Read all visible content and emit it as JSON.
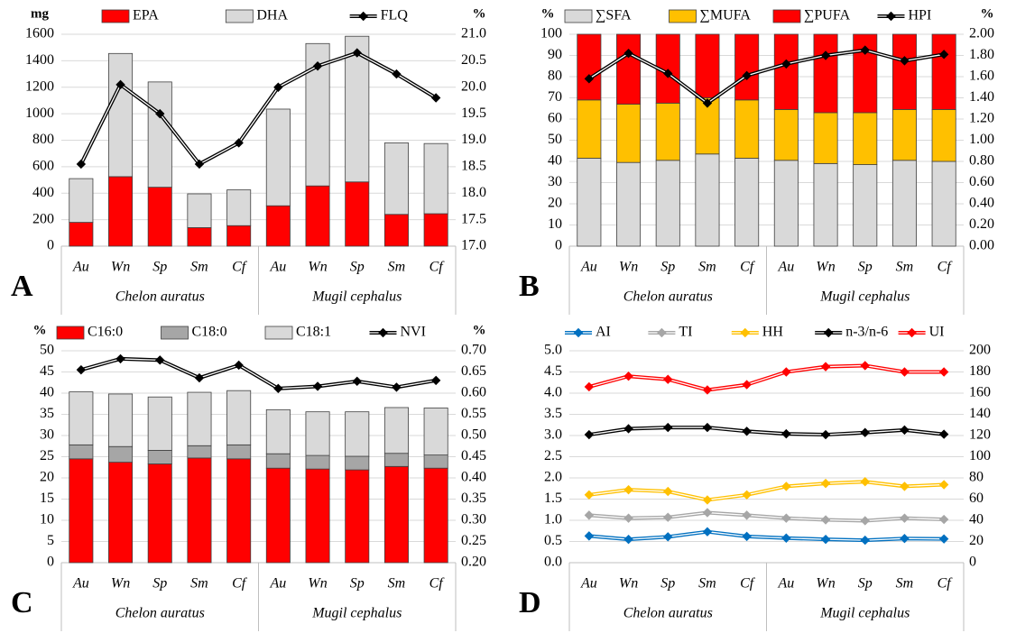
{
  "chart_data": [
    {
      "type": "bar",
      "panel_label": "A",
      "y_label": "mg",
      "y2_label": "%",
      "categories": [
        "Au",
        "Wn",
        "Sp",
        "Sm",
        "Cf",
        "Au",
        "Wn",
        "Sp",
        "Sm",
        "Cf"
      ],
      "groups": [
        "Chelon auratus",
        "Mugil cephalus"
      ],
      "series": [
        {
          "name": "EPA",
          "color": "#ff0000",
          "values": [
            180,
            525,
            445,
            140,
            155,
            305,
            455,
            485,
            240,
            245
          ]
        },
        {
          "name": "DHA",
          "color": "#d9d9d9",
          "values": [
            330,
            930,
            795,
            255,
            270,
            730,
            1075,
            1100,
            540,
            530
          ]
        },
        {
          "name": "FLQ",
          "color": "#000000",
          "type": "line",
          "axis": "y2",
          "values": [
            18.55,
            20.05,
            19.5,
            18.55,
            18.95,
            20.0,
            20.4,
            20.65,
            20.25,
            19.8
          ]
        }
      ],
      "ylim": [
        0,
        1600
      ],
      "yticks": [
        0,
        200,
        400,
        600,
        800,
        1000,
        1200,
        1400,
        1600
      ],
      "y2lim": [
        17,
        21
      ],
      "y2ticks": [
        {
          "value": 17,
          "label": "17.0"
        },
        {
          "value": 17.5,
          "label": "17.5"
        },
        {
          "value": 18,
          "label": "18.0"
        },
        {
          "value": 18.5,
          "label": "18.5"
        },
        {
          "value": 19,
          "label": "19.0"
        },
        {
          "value": 19.5,
          "label": "19.5"
        },
        {
          "value": 20,
          "label": "20.0"
        },
        {
          "value": 20.5,
          "label": "20.5"
        },
        {
          "value": 21,
          "label": "21.0"
        }
      ],
      "grid": true
    },
    {
      "type": "bar",
      "panel_label": "B",
      "y_label": "%",
      "y2_label": "%",
      "categories": [
        "Au",
        "Wn",
        "Sp",
        "Sm",
        "Cf",
        "Au",
        "Wn",
        "Sp",
        "Sm",
        "Cf"
      ],
      "groups": [
        "Chelon auratus",
        "Mugil cephalus"
      ],
      "series": [
        {
          "name": "∑SFA",
          "color": "#d9d9d9",
          "values": [
            41.5,
            39.5,
            40.5,
            43.5,
            41.5,
            40.5,
            39,
            38.5,
            40.5,
            40
          ]
        },
        {
          "name": "∑MUFA",
          "color": "#ffc000",
          "values": [
            27.5,
            27.5,
            27,
            26.5,
            27.5,
            24,
            24,
            24.5,
            24,
            24.5
          ]
        },
        {
          "name": "∑PUFA",
          "color": "#ff0000",
          "values": [
            31,
            33,
            32.5,
            30,
            31,
            35.5,
            37,
            37,
            35.5,
            35.5
          ]
        },
        {
          "name": "HPI",
          "color": "#000000",
          "type": "line",
          "axis": "y2",
          "values": [
            1.58,
            1.82,
            1.63,
            1.35,
            1.61,
            1.72,
            1.8,
            1.85,
            1.75,
            1.81
          ]
        }
      ],
      "ylim": [
        0,
        100
      ],
      "yticks": [
        0,
        10,
        20,
        30,
        40,
        50,
        60,
        70,
        80,
        90,
        100
      ],
      "y2lim": [
        0,
        2
      ],
      "y2ticks": [
        {
          "value": 0,
          "label": "0.00"
        },
        {
          "value": 0.2,
          "label": "0.20"
        },
        {
          "value": 0.4,
          "label": "0.40"
        },
        {
          "value": 0.6,
          "label": "0.60"
        },
        {
          "value": 0.8,
          "label": "0.80"
        },
        {
          "value": 1,
          "label": "1.00"
        },
        {
          "value": 1.2,
          "label": "1.20"
        },
        {
          "value": 1.4,
          "label": "1.40"
        },
        {
          "value": 1.6,
          "label": "1.60"
        },
        {
          "value": 1.8,
          "label": "1.80"
        },
        {
          "value": 2,
          "label": "2.00"
        }
      ],
      "grid": true
    },
    {
      "type": "bar",
      "panel_label": "C",
      "y_label": "%",
      "y2_label": "%",
      "categories": [
        "Au",
        "Wn",
        "Sp",
        "Sm",
        "Cf",
        "Au",
        "Wn",
        "Sp",
        "Sm",
        "Cf"
      ],
      "groups": [
        "Chelon auratus",
        "Mugil cephalus"
      ],
      "series": [
        {
          "name": "C16:0",
          "color": "#ff0000",
          "values": [
            24.5,
            23.7,
            23.3,
            24.7,
            24.5,
            22.3,
            22.1,
            21.9,
            22.7,
            22.3
          ]
        },
        {
          "name": "C18:0",
          "color": "#a6a6a6",
          "values": [
            3.3,
            3.7,
            3.2,
            2.9,
            3.3,
            3.4,
            3.2,
            3.2,
            3.1,
            3.1
          ]
        },
        {
          "name": "C18:1",
          "color": "#d9d9d9",
          "values": [
            12.5,
            12.4,
            12.6,
            12.6,
            12.8,
            10.4,
            10.3,
            10.5,
            10.8,
            11.1
          ]
        },
        {
          "name": "NVI",
          "color": "#000000",
          "type": "line",
          "axis": "y2",
          "values": [
            0.655,
            0.681,
            0.678,
            0.636,
            0.666,
            0.611,
            0.616,
            0.628,
            0.614,
            0.63
          ]
        }
      ],
      "ylim": [
        0,
        50
      ],
      "yticks": [
        0,
        5,
        10,
        15,
        20,
        25,
        30,
        35,
        40,
        45,
        50
      ],
      "y2lim": [
        0.2,
        0.7
      ],
      "y2ticks": [
        {
          "value": 0.2,
          "label": "0.20"
        },
        {
          "value": 0.25,
          "label": "0.25"
        },
        {
          "value": 0.3,
          "label": "0.30"
        },
        {
          "value": 0.35,
          "label": "0.35"
        },
        {
          "value": 0.4,
          "label": "0.40"
        },
        {
          "value": 0.45,
          "label": "0.45"
        },
        {
          "value": 0.5,
          "label": "0.50"
        },
        {
          "value": 0.55,
          "label": "0.55"
        },
        {
          "value": 0.6,
          "label": "0.60"
        },
        {
          "value": 0.65,
          "label": "0.65"
        },
        {
          "value": 0.7,
          "label": "0.70"
        }
      ],
      "grid": true
    },
    {
      "type": "line",
      "panel_label": "D",
      "categories": [
        "Au",
        "Wn",
        "Sp",
        "Sm",
        "Cf",
        "Au",
        "Wn",
        "Sp",
        "Sm",
        "Cf"
      ],
      "groups": [
        "Chelon auratus",
        "Mugil cephalus"
      ],
      "series": [
        {
          "name": "AI",
          "color": "#0070c0",
          "values": [
            0.63,
            0.55,
            0.61,
            0.73,
            0.62,
            0.58,
            0.55,
            0.53,
            0.57,
            0.56
          ]
        },
        {
          "name": "TI",
          "color": "#a6a6a6",
          "values": [
            1.12,
            1.05,
            1.07,
            1.18,
            1.12,
            1.05,
            1.01,
            0.99,
            1.05,
            1.02
          ]
        },
        {
          "name": "HH",
          "color": "#ffc000",
          "values": [
            1.6,
            1.72,
            1.68,
            1.48,
            1.6,
            1.8,
            1.87,
            1.91,
            1.8,
            1.84
          ]
        },
        {
          "name": "n-3/n-6",
          "color": "#000000",
          "values": [
            3.02,
            3.16,
            3.19,
            3.19,
            3.1,
            3.04,
            3.02,
            3.07,
            3.13,
            3.03
          ]
        },
        {
          "name": "UI",
          "color": "#ff0000",
          "axis": "y2",
          "values": [
            166,
            176,
            173,
            163,
            168,
            180,
            185,
            186,
            180,
            180
          ]
        }
      ],
      "ylim": [
        0,
        5
      ],
      "yticks": [
        {
          "value": 0,
          "label": "0.0"
        },
        {
          "value": 0.5,
          "label": "0.5"
        },
        {
          "value": 1,
          "label": "1.0"
        },
        {
          "value": 1.5,
          "label": "1.5"
        },
        {
          "value": 2,
          "label": "2.0"
        },
        {
          "value": 2.5,
          "label": "2.5"
        },
        {
          "value": 3,
          "label": "3.0"
        },
        {
          "value": 3.5,
          "label": "3.5"
        },
        {
          "value": 4,
          "label": "4.0"
        },
        {
          "value": 4.5,
          "label": "4.5"
        },
        {
          "value": 5,
          "label": "5.0"
        }
      ],
      "y2lim": [
        0,
        200
      ],
      "y2ticks": [
        0,
        20,
        40,
        60,
        80,
        100,
        120,
        140,
        160,
        180,
        200
      ],
      "grid": true
    }
  ]
}
